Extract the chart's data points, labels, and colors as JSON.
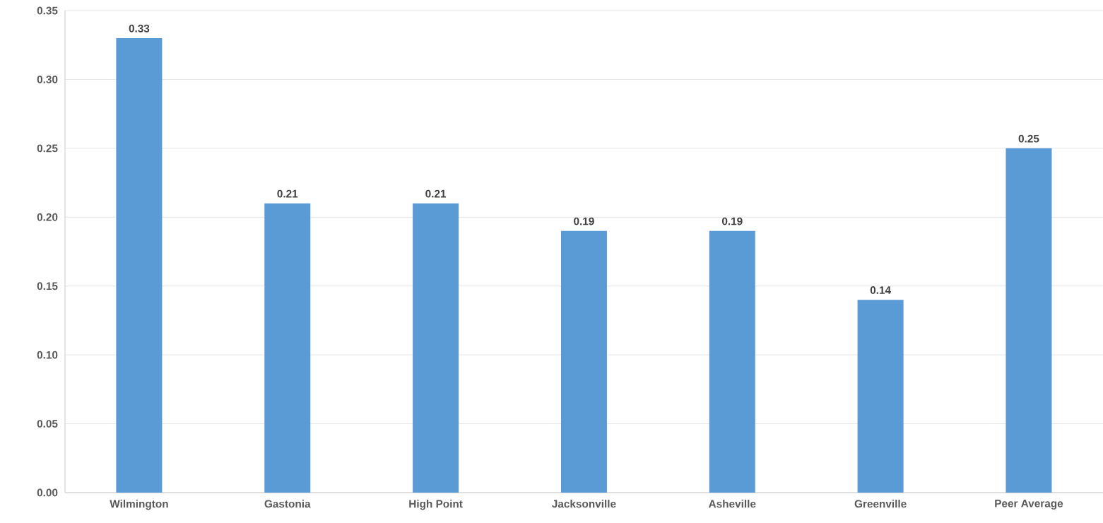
{
  "chart_data": {
    "type": "bar",
    "categories": [
      "Wilmington",
      "Gastonia",
      "High Point",
      "Jacksonville",
      "Asheville",
      "Greenville",
      "Peer Average"
    ],
    "values": [
      0.33,
      0.21,
      0.21,
      0.19,
      0.19,
      0.14,
      0.25
    ],
    "color": "#5b9bd5",
    "ylim": [
      0,
      0.35
    ],
    "yticks": [
      {
        "value": 0,
        "label": "0.00"
      },
      0.05,
      {
        "value": 0.1,
        "label": "0.10"
      },
      0.15,
      {
        "value": 0.2,
        "label": "0.20"
      },
      0.25,
      {
        "value": 0.3,
        "label": "0.30"
      },
      0.35
    ],
    "grid": "y",
    "data_labels": true
  }
}
